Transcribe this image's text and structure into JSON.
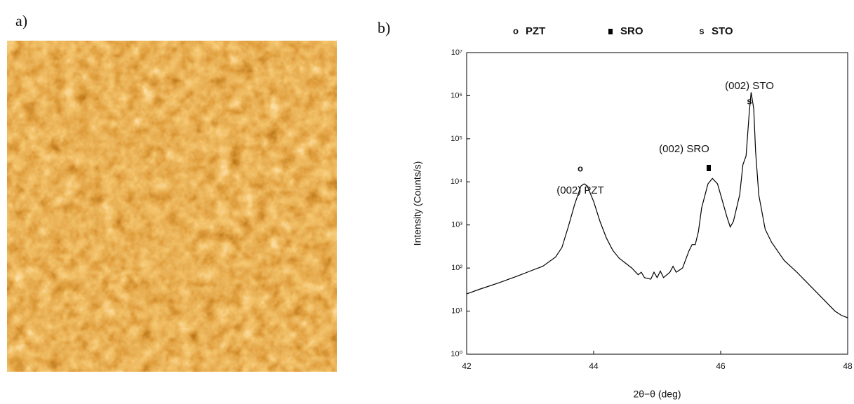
{
  "panel_labels": [
    "a)",
    "b)"
  ],
  "chart_data": {
    "type": "line",
    "log_y": true,
    "color": "#000000",
    "xlabel": "2θ−θ (deg)",
    "ylabel": "Intensity (Counts/s)",
    "legend": [
      {
        "symbol": "o",
        "name": "PZT"
      },
      {
        "name": "SRO"
      },
      {
        "symbol": "s",
        "name": "STO"
      }
    ],
    "annotations": [
      {
        "text": "(002) PZT",
        "symbol": "o"
      },
      {
        "text": "(002) SRO"
      },
      {
        "text": "(002) STO",
        "symbol": "s"
      }
    ],
    "xlim": [
      42,
      48
    ],
    "xticks": [
      42,
      44,
      46,
      48
    ],
    "ylim": [
      1,
      10000000
    ],
    "yticks": [
      {
        "value": 1,
        "label": "10⁰"
      },
      {
        "value": 10,
        "label": "10¹"
      },
      {
        "value": 100,
        "label": "10²"
      },
      {
        "value": 1000,
        "label": "10³"
      },
      {
        "value": 10000,
        "label": "10⁴"
      },
      {
        "value": 100000,
        "label": "10⁵"
      },
      {
        "value": 1000000,
        "label": "10⁶"
      },
      {
        "value": 10000000,
        "label": "10⁷"
      }
    ],
    "x": [
      42.0,
      42.2,
      42.5,
      42.8,
      43.0,
      43.2,
      43.4,
      43.5,
      43.6,
      43.7,
      43.8,
      43.85,
      43.9,
      44.0,
      44.1,
      44.2,
      44.3,
      44.4,
      44.5,
      44.6,
      44.7,
      44.75,
      44.8,
      44.9,
      44.95,
      45.0,
      45.05,
      45.1,
      45.2,
      45.25,
      45.3,
      45.4,
      45.5,
      45.55,
      45.6,
      45.65,
      45.7,
      45.8,
      45.87,
      45.95,
      46.0,
      46.1,
      46.15,
      46.2,
      46.3,
      46.35,
      46.4,
      46.45,
      46.48,
      46.52,
      46.55,
      46.6,
      46.7,
      46.8,
      47.0,
      47.2,
      47.4,
      47.6,
      47.8,
      47.9,
      48.0
    ],
    "values": [
      25,
      32,
      45,
      65,
      85,
      110,
      180,
      300,
      900,
      3000,
      8000,
      9000,
      8000,
      3500,
      1200,
      500,
      260,
      170,
      130,
      100,
      70,
      80,
      60,
      55,
      80,
      60,
      85,
      60,
      80,
      110,
      80,
      100,
      250,
      350,
      350,
      700,
      2500,
      9000,
      12000,
      9000,
      5000,
      1500,
      900,
      1200,
      5000,
      25000,
      40000,
      400000,
      1200000,
      500000,
      50000,
      5000,
      800,
      400,
      150,
      80,
      40,
      20,
      10,
      8,
      7
    ]
  }
}
